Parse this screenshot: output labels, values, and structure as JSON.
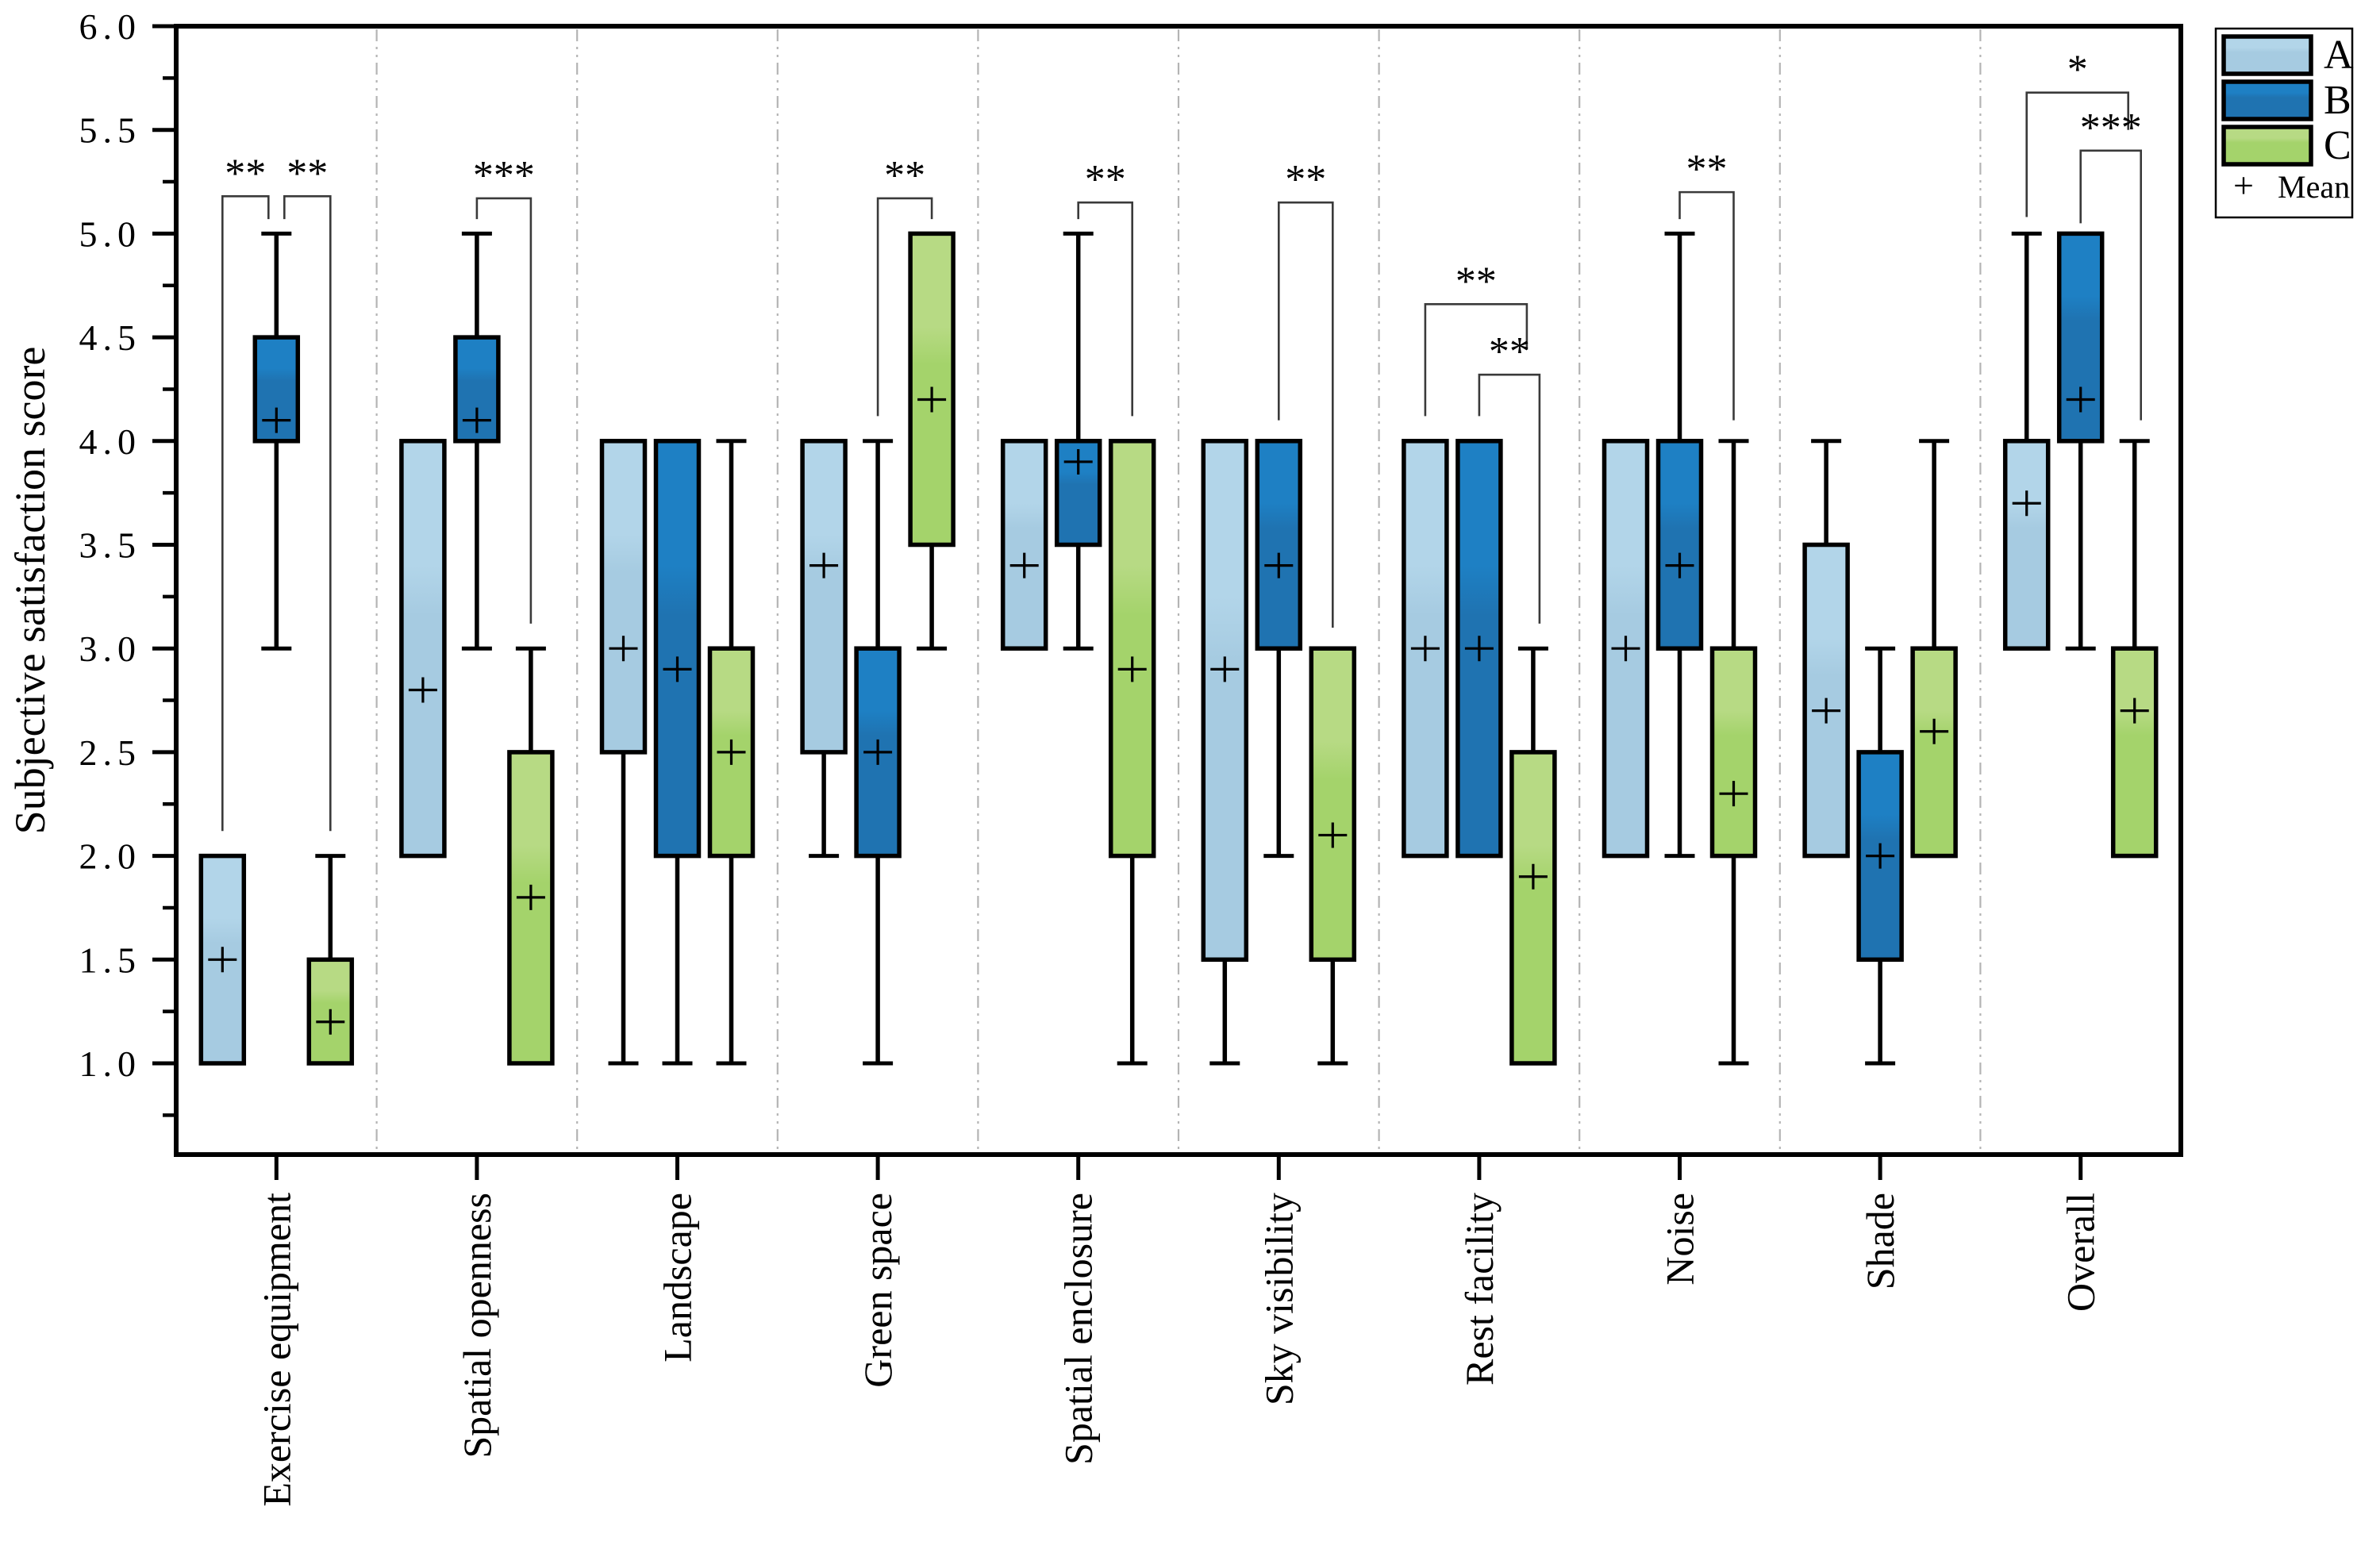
{
  "figure": {
    "background": "#ffffff",
    "frame_color": "#000000",
    "separator_color": "#b4b4b4",
    "bracket_color": "#3a3a3a"
  },
  "chart_data": {
    "type": "grouped_boxplot",
    "title": "",
    "xlabel": "",
    "ylabel": "Subjective satisfaction score",
    "ylim": [
      0.56,
      6.0
    ],
    "yticks": [
      6.0,
      5.5,
      5.0,
      4.5,
      4.0,
      3.5,
      3.0,
      2.5,
      2.0,
      1.5,
      1.0
    ],
    "ytick_labels": [
      "6.0",
      "5.5",
      "5.0",
      "4.5",
      "4.0",
      "3.5",
      "3.0",
      "2.5",
      "2.0",
      "1.5",
      "1.0"
    ],
    "yminor_ticks": [
      5.75,
      5.25,
      4.75,
      4.25,
      3.75,
      3.25,
      2.75,
      2.25,
      1.75,
      1.25,
      0.75
    ],
    "grid": false,
    "group_separators": "gray dash-dot lines between categories",
    "categories": [
      "Exercise equipment",
      "Spatial openness",
      "Landscape",
      "Green space",
      "Spatial enclosure",
      "Sky visibility",
      "Rest facility",
      "Noise",
      "Shade",
      "Overall"
    ],
    "series": [
      {
        "name": "A",
        "color": "#a6cbe1",
        "color_light": "#b2d5e9",
        "boxes": [
          {
            "q1": 1.0,
            "q3": 2.0,
            "whislo": 1.0,
            "whishi": 2.0,
            "mean": 1.5
          },
          {
            "q1": 2.0,
            "q3": 4.0,
            "whislo": 2.0,
            "whishi": 4.0,
            "mean": 2.8
          },
          {
            "q1": 2.5,
            "q3": 4.0,
            "whislo": 1.0,
            "whishi": 4.0,
            "mean": 3.0
          },
          {
            "q1": 2.5,
            "q3": 4.0,
            "whislo": 2.0,
            "whishi": 4.0,
            "mean": 3.4
          },
          {
            "q1": 3.0,
            "q3": 4.0,
            "whislo": 3.0,
            "whishi": 4.0,
            "mean": 3.4
          },
          {
            "q1": 1.5,
            "q3": 4.0,
            "whislo": 1.0,
            "whishi": 4.0,
            "mean": 2.9
          },
          {
            "q1": 2.0,
            "q3": 4.0,
            "whislo": 2.0,
            "whishi": 4.0,
            "mean": 3.0
          },
          {
            "q1": 2.0,
            "q3": 4.0,
            "whislo": 2.0,
            "whishi": 4.0,
            "mean": 3.0
          },
          {
            "q1": 2.0,
            "q3": 3.5,
            "whislo": 2.0,
            "whishi": 4.0,
            "mean": 2.7
          },
          {
            "q1": 3.0,
            "q3": 4.0,
            "whislo": 3.0,
            "whishi": 5.0,
            "mean": 3.7
          }
        ]
      },
      {
        "name": "B",
        "color": "#1f73b1",
        "color_light": "#1e80c4",
        "boxes": [
          {
            "q1": 4.0,
            "q3": 4.5,
            "whislo": 3.0,
            "whishi": 5.0,
            "mean": 4.1
          },
          {
            "q1": 4.0,
            "q3": 4.5,
            "whislo": 3.0,
            "whishi": 5.0,
            "mean": 4.1
          },
          {
            "q1": 2.0,
            "q3": 4.0,
            "whislo": 1.0,
            "whishi": 4.0,
            "mean": 2.9
          },
          {
            "q1": 2.0,
            "q3": 3.0,
            "whislo": 1.0,
            "whishi": 4.0,
            "mean": 2.5
          },
          {
            "q1": 3.5,
            "q3": 4.0,
            "whislo": 3.0,
            "whishi": 5.0,
            "mean": 3.9
          },
          {
            "q1": 3.0,
            "q3": 4.0,
            "whislo": 2.0,
            "whishi": 4.0,
            "mean": 3.4
          },
          {
            "q1": 2.0,
            "q3": 4.0,
            "whislo": 2.0,
            "whishi": 4.0,
            "mean": 3.0
          },
          {
            "q1": 3.0,
            "q3": 4.0,
            "whislo": 2.0,
            "whishi": 5.0,
            "mean": 3.4
          },
          {
            "q1": 1.5,
            "q3": 2.5,
            "whislo": 1.0,
            "whishi": 3.0,
            "mean": 2.0
          },
          {
            "q1": 4.0,
            "q3": 5.0,
            "whislo": 3.0,
            "whishi": 5.0,
            "mean": 4.2
          }
        ]
      },
      {
        "name": "C",
        "color": "#a4d36b",
        "color_light": "#b7da84",
        "boxes": [
          {
            "q1": 1.0,
            "q3": 1.5,
            "whislo": 1.0,
            "whishi": 2.0,
            "mean": 1.2
          },
          {
            "q1": 1.0,
            "q3": 2.5,
            "whislo": 1.0,
            "whishi": 3.0,
            "mean": 1.8
          },
          {
            "q1": 2.0,
            "q3": 3.0,
            "whislo": 1.0,
            "whishi": 4.0,
            "mean": 2.5
          },
          {
            "q1": 3.5,
            "q3": 5.0,
            "whislo": 3.0,
            "whishi": 5.0,
            "mean": 4.2
          },
          {
            "q1": 2.0,
            "q3": 4.0,
            "whislo": 1.0,
            "whishi": 4.0,
            "mean": 2.9
          },
          {
            "q1": 1.5,
            "q3": 3.0,
            "whislo": 1.0,
            "whishi": 3.0,
            "mean": 2.1
          },
          {
            "q1": 1.0,
            "q3": 2.5,
            "whislo": 1.0,
            "whishi": 3.0,
            "mean": 1.9
          },
          {
            "q1": 2.0,
            "q3": 3.0,
            "whislo": 1.0,
            "whishi": 4.0,
            "mean": 2.3
          },
          {
            "q1": 2.0,
            "q3": 3.0,
            "whislo": 2.0,
            "whishi": 4.0,
            "mean": 2.6
          },
          {
            "q1": 2.0,
            "q3": 3.0,
            "whislo": 2.0,
            "whishi": 4.0,
            "mean": 2.7
          }
        ]
      }
    ],
    "significance": [
      {
        "category_index": 0,
        "from": "A",
        "to": "B",
        "label": "**",
        "bar_y": 5.18,
        "from_drop_y": 2.12,
        "to_drop_y": 5.07,
        "to_inset": -10
      },
      {
        "category_index": 0,
        "from": "B",
        "to": "C",
        "label": "**",
        "bar_y": 5.18,
        "from_drop_y": 5.07,
        "to_drop_y": 2.12,
        "from_inset": 10
      },
      {
        "category_index": 1,
        "from": "B",
        "to": "C",
        "label": "***",
        "bar_y": 5.17,
        "from_drop_y": 5.07,
        "to_drop_y": 3.12
      },
      {
        "category_index": 3,
        "from": "B",
        "to": "C",
        "label": "**",
        "bar_y": 5.17,
        "from_drop_y": 4.12,
        "to_drop_y": 5.07
      },
      {
        "category_index": 4,
        "from": "B",
        "to": "C",
        "label": "**",
        "bar_y": 5.15,
        "from_drop_y": 5.07,
        "to_drop_y": 4.12
      },
      {
        "category_index": 5,
        "from": "B",
        "to": "C",
        "label": "**",
        "bar_y": 5.15,
        "from_drop_y": 4.1,
        "to_drop_y": 3.1
      },
      {
        "category_index": 6,
        "from": "A",
        "to": "C",
        "label": "**",
        "bar_y": 4.66,
        "from_drop_y": 4.12,
        "to_drop_y": 4.44,
        "to_inset": -8
      },
      {
        "category_index": 6,
        "from": "B",
        "to": "C",
        "label": "**",
        "bar_y": 4.32,
        "from_drop_y": 4.12,
        "to_drop_y": 3.12,
        "to_inset": 8
      },
      {
        "category_index": 7,
        "from": "B",
        "to": "C",
        "label": "**",
        "bar_y": 5.2,
        "from_drop_y": 5.07,
        "to_drop_y": 4.1
      },
      {
        "category_index": 9,
        "from": "A",
        "to": "C",
        "label": "*",
        "bar_y": 5.68,
        "from_drop_y": 5.08,
        "to_drop_y": 5.5,
        "to_inset": -8
      },
      {
        "category_index": 9,
        "from": "B",
        "to": "C",
        "label": "***",
        "bar_y": 5.4,
        "from_drop_y": 5.05,
        "to_drop_y": 4.1,
        "to_inset": 8
      }
    ],
    "legend": {
      "position": "outside top-right",
      "entries": [
        {
          "label": "A",
          "swatch": "light-blue-box"
        },
        {
          "label": "B",
          "swatch": "dark-blue-box"
        },
        {
          "label": "C",
          "swatch": "green-box"
        }
      ],
      "mean_symbol": "+",
      "mean_label": "Mean"
    }
  }
}
